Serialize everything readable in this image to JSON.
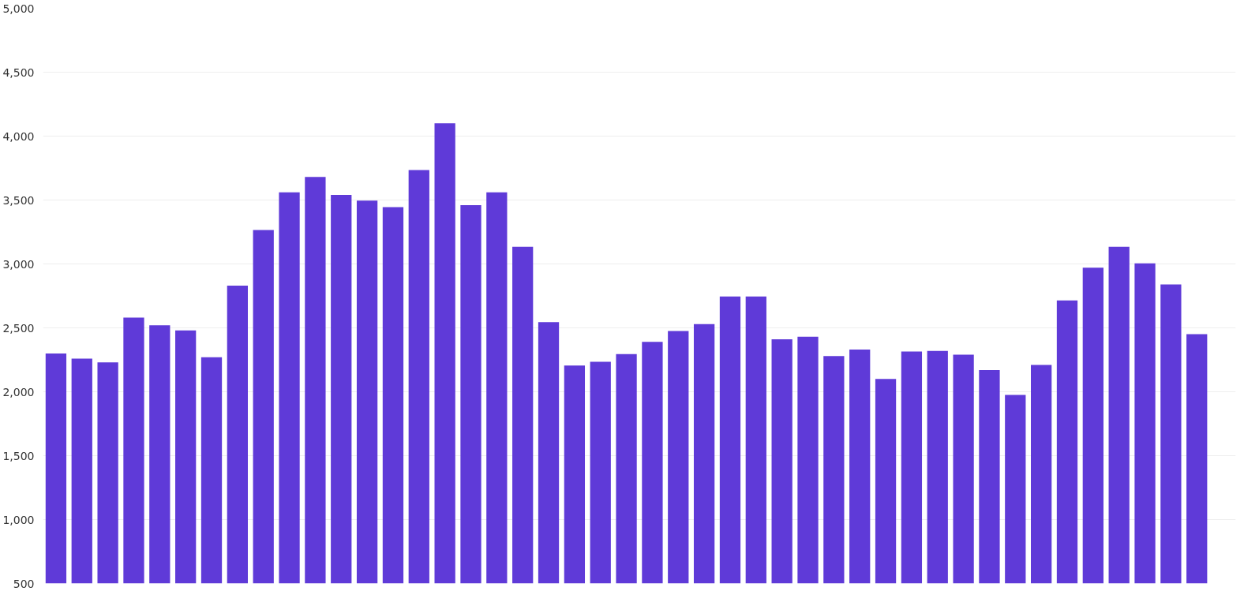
{
  "chart_data": {
    "type": "bar",
    "color": "#5f3ad8",
    "categories": [
      null,
      null,
      null,
      null,
      null,
      null,
      null,
      null,
      null,
      null,
      null,
      null,
      null,
      null,
      null,
      null,
      null,
      null,
      null,
      null,
      null,
      null,
      null,
      null,
      null,
      null,
      null,
      null,
      null,
      null,
      null,
      null,
      null,
      null,
      null,
      null,
      null,
      null,
      null,
      null,
      null,
      null,
      null,
      null,
      null
    ],
    "values": [
      2300,
      2260,
      2230,
      2580,
      2520,
      2480,
      2270,
      2830,
      3265,
      3560,
      3680,
      3540,
      3495,
      3445,
      3735,
      4100,
      3460,
      3560,
      3135,
      2545,
      2205,
      2235,
      2295,
      2390,
      2475,
      2530,
      2745,
      2745,
      2410,
      2430,
      2280,
      2330,
      2100,
      2315,
      2320,
      2290,
      2170,
      1975,
      2210,
      2715,
      2970,
      3135,
      3005,
      2840,
      2450
    ],
    "ylim": [
      500,
      5000
    ],
    "yticks": [
      {
        "value": 500,
        "label": "500"
      },
      {
        "value": 1000,
        "label": "1,000"
      },
      {
        "value": 1500,
        "label": "1,500"
      },
      {
        "value": 2000,
        "label": "2,000"
      },
      {
        "value": 2500,
        "label": "2,500"
      },
      {
        "value": 3000,
        "label": "3,000"
      },
      {
        "value": 3500,
        "label": "3,500"
      },
      {
        "value": 4000,
        "label": "4,000"
      },
      {
        "value": 4500,
        "label": "4,500"
      },
      {
        "value": 5000,
        "label": "5,000"
      }
    ],
    "grid": "y",
    "tick_labels": "y"
  }
}
